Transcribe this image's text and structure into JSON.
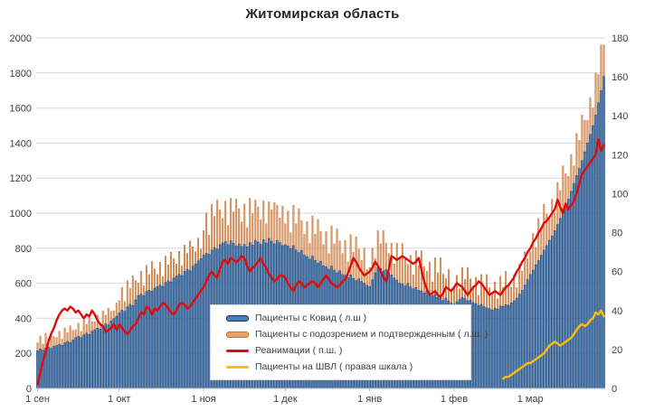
{
  "title": "Житомирская область",
  "colors": {
    "background": "#ffffff",
    "grid": "#d9d9d9",
    "axis_line": "#bfbfbf",
    "tick_text": "#404040",
    "covid_bar": "#4a7ebb",
    "covid_bar_border": "#17375e",
    "suspected_bar": "#e2a272",
    "suspected_bar_border": "#c0702f",
    "reanimation_line": "#e00b0b",
    "ventilator_line": "#ffc000"
  },
  "chart_data": {
    "type": "bar",
    "subtype": "combo-bar-line",
    "title": "Житомирская область",
    "xlabel": "",
    "ylabel": "",
    "grid": true,
    "legend_position": "inside-bottom-left",
    "left_axis": {
      "min": 0,
      "max": 2000,
      "step": 200,
      "tick_labels": [
        "0",
        "200",
        "400",
        "600",
        "800",
        "1000",
        "1200",
        "1400",
        "1600",
        "1800",
        "2000"
      ]
    },
    "right_axis": {
      "min": 0,
      "max": 180,
      "step": 20,
      "tick_labels": [
        "0",
        "20",
        "40",
        "60",
        "80",
        "100",
        "120",
        "140",
        "160",
        "180"
      ]
    },
    "x_tick_labels": [
      "1 сен",
      "1 окт",
      "1 ноя",
      "1 дек",
      "1 янв",
      "1 фев",
      "1 мар"
    ],
    "x_tick_indices": [
      0,
      30,
      61,
      91,
      122,
      153,
      181
    ],
    "n_points": 209,
    "series": [
      {
        "name": "Пациенты с Ковид ( л.ш )",
        "type": "bar",
        "axis": "left",
        "color": "#4a7ebb",
        "border": "#17375e",
        "values": [
          215,
          224,
          218,
          230,
          236,
          228,
          240,
          245,
          252,
          246,
          260,
          268,
          262,
          276,
          290,
          297,
          290,
          306,
          315,
          308,
          326,
          335,
          344,
          338,
          358,
          368,
          362,
          385,
          398,
          412,
          430,
          447,
          440,
          465,
          480,
          472,
          505,
          530,
          538,
          530,
          552,
          560,
          554,
          572,
          580,
          590,
          582,
          605,
          615,
          608,
          630,
          640,
          652,
          644,
          668,
          680,
          672,
          698,
          710,
          728,
          740,
          760,
          772,
          764,
          790,
          802,
          795,
          820,
          830,
          838,
          820,
          842,
          828,
          812,
          825,
          810,
          822,
          808,
          832,
          818,
          845,
          835,
          822,
          848,
          830,
          855,
          840,
          825,
          845,
          832,
          815,
          820,
          812,
          798,
          815,
          790,
          775,
          788,
          760,
          752,
          738,
          755,
          730,
          715,
          726,
          700,
          694,
          680,
          698,
          675,
          660,
          672,
          650,
          645,
          632,
          648,
          628,
          615,
          625,
          610,
          600,
          588,
          580,
          620,
          660,
          690,
          685,
          670,
          678,
          660,
          648,
          630,
          618,
          600,
          596,
          584,
          598,
          580,
          568,
          576,
          560,
          556,
          544,
          558,
          540,
          528,
          536,
          520,
          515,
          502,
          516,
          498,
          486,
          480,
          495,
          508,
          520,
          512,
          500,
          505,
          490,
          484,
          472,
          480,
          466,
          460,
          455,
          448,
          458,
          452,
          470,
          468,
          478,
          474,
          488,
          500,
          515,
          538,
          560,
          590,
          620,
          650,
          675,
          705,
          730,
          760,
          790,
          815,
          845,
          870,
          900,
          935,
          970,
          1010,
          1045,
          1080,
          1125,
          1170,
          1215,
          1255,
          1300,
          1350,
          1400,
          1450,
          1500,
          1560,
          1630,
          1700,
          1780
        ]
      },
      {
        "name": "Пациенты с подозрением и подтвержденным ( л.ш. )",
        "type": "bar",
        "axis": "left",
        "color": "#e2a272",
        "border": "#c0702f",
        "values": [
          260,
          299,
          253,
          315,
          286,
          323,
          295,
          290,
          327,
          281,
          345,
          318,
          357,
          331,
          335,
          372,
          325,
          391,
          365,
          403,
          381,
          380,
          419,
          373,
          443,
          418,
          457,
          440,
          443,
          487,
          500,
          577,
          495,
          615,
          570,
          642,
          615,
          600,
          668,
          585,
          702,
          650,
          724,
          682,
          650,
          720,
          637,
          755,
          705,
          778,
          740,
          710,
          782,
          699,
          818,
          770,
          842,
          808,
          780,
          858,
          795,
          900,
          1002,
          874,
          1050,
          982,
          1075,
          1020,
          970,
          1068,
          930,
          1085,
          1008,
          1080,
          1025,
          950,
          1052,
          918,
          1085,
          998,
          1075,
          1035,
          962,
          1070,
          940,
          1065,
          1020,
          1060,
          1045,
          972,
          1040,
          940,
          1012,
          888,
          1045,
          940,
          1025,
          958,
          880,
          952,
          828,
          985,
          880,
          965,
          896,
          820,
          894,
          770,
          928,
          825,
          910,
          842,
          770,
          845,
          722,
          878,
          778,
          865,
          795,
          730,
          800,
          678,
          690,
          800,
          740,
          900,
          825,
          900,
          828,
          770,
          828,
          710,
          828,
          740,
          826,
          734,
          708,
          760,
          648,
          786,
          700,
          786,
          694,
          668,
          720,
          608,
          746,
          660,
          745,
          652,
          626,
          678,
          566,
          570,
          645,
          568,
          690,
          622,
          690,
          625,
          580,
          634,
          532,
          650,
          576,
          650,
          575,
          538,
          608,
          512,
          640,
          578,
          668,
          594,
          578,
          650,
          575,
          708,
          670,
          780,
          740,
          780,
          885,
          805,
          970,
          920,
          1050,
          995,
          975,
          1080,
          1000,
          1175,
          1130,
          1270,
          1225,
          1210,
          1335,
          1270,
          1455,
          1415,
          1560,
          1530,
          1530,
          1660,
          1600,
          1800,
          1790,
          1960,
          1960
        ]
      },
      {
        "name": "Реанимации ( п.ш. )",
        "type": "line",
        "axis": "right",
        "color": "#e00b0b",
        "values": [
          2,
          8,
          14,
          19,
          24,
          28,
          31,
          35,
          38,
          40,
          41,
          40,
          42,
          41,
          39,
          40,
          38,
          36,
          38,
          37,
          40,
          38,
          35,
          33,
          32,
          29,
          30,
          31,
          33,
          30,
          33,
          31,
          29,
          28,
          30,
          32,
          33,
          36,
          39,
          38,
          42,
          41,
          38,
          41,
          40,
          42,
          44,
          43,
          41,
          39,
          38,
          40,
          43,
          44,
          43,
          41,
          42,
          44,
          46,
          48,
          50,
          52,
          55,
          58,
          60,
          58,
          57,
          61,
          65,
          66,
          64,
          67,
          66,
          65,
          66,
          68,
          67,
          63,
          60,
          62,
          63,
          65,
          67,
          64,
          62,
          59,
          57,
          55,
          56,
          58,
          58,
          57,
          54,
          52,
          50,
          53,
          55,
          54,
          52,
          53,
          54,
          55,
          54,
          52,
          54,
          56,
          58,
          56,
          54,
          53,
          52,
          53,
          55,
          56,
          59,
          63,
          67,
          65,
          62,
          60,
          58,
          59,
          60,
          62,
          65,
          63,
          60,
          57,
          55,
          61,
          68,
          67,
          66,
          67,
          68,
          67,
          66,
          65,
          64,
          65,
          67,
          61,
          55,
          51,
          48,
          49,
          50,
          48,
          47,
          49,
          52,
          51,
          50,
          52,
          54,
          53,
          52,
          50,
          48,
          50,
          52,
          53,
          55,
          54,
          52,
          50,
          48,
          49,
          50,
          49,
          48,
          50,
          52,
          53,
          55,
          57,
          60,
          62,
          65,
          67,
          70,
          72,
          75,
          77,
          80,
          82,
          85,
          86,
          88,
          90,
          92,
          97,
          93,
          90,
          95,
          92,
          94,
          96,
          100,
          105,
          110,
          112,
          114,
          116,
          118,
          120,
          128,
          122,
          125
        ]
      },
      {
        "name": "Пациенты на ШВЛ ( правая шкала )",
        "type": "line",
        "axis": "right",
        "color": "#ffc000",
        "start_index": 171,
        "values": [
          5,
          6,
          6,
          7,
          8,
          9,
          10,
          11,
          12,
          13,
          13,
          14,
          15,
          16,
          17,
          18,
          20,
          22,
          23,
          24,
          23,
          22,
          23,
          24,
          25,
          26,
          28,
          30,
          32,
          33,
          32,
          33,
          35,
          36,
          39,
          38,
          40,
          37
        ]
      }
    ]
  }
}
